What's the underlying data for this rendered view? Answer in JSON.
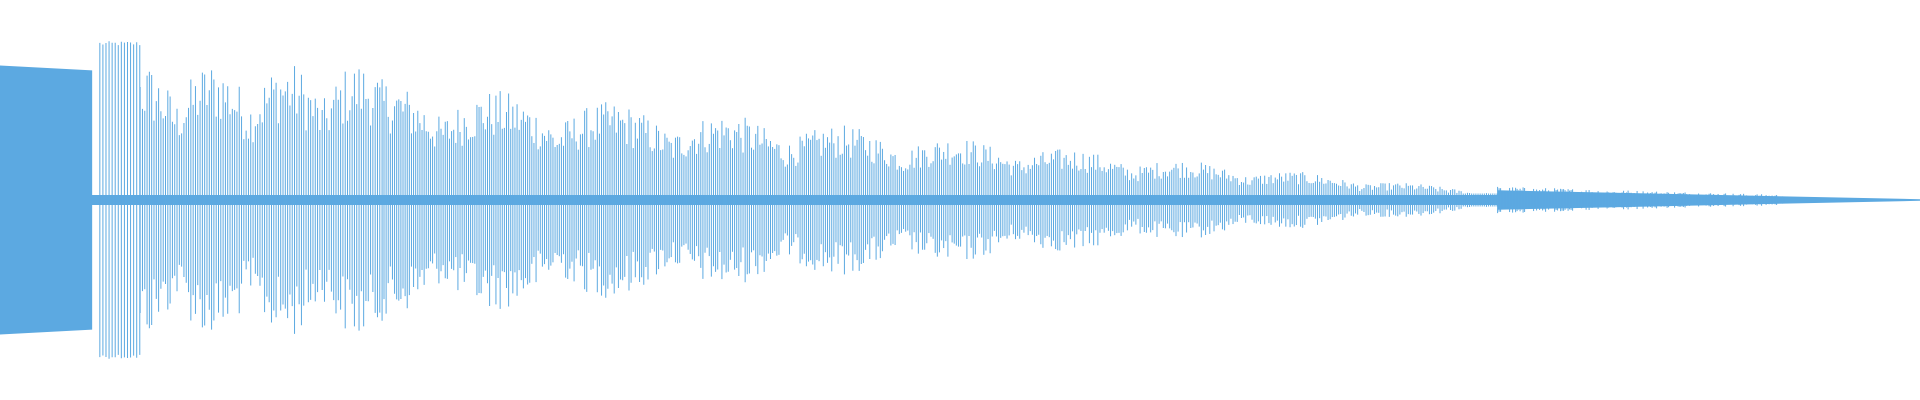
{
  "waveform": {
    "color": "#5ca9e1",
    "background": "#ffffff",
    "segments": [
      {
        "kind": "solid",
        "start": 0.0,
        "end": 0.048,
        "amp_start": 0.83,
        "amp_end": 0.8
      },
      {
        "kind": "gap",
        "start": 0.048,
        "end": 0.052
      },
      {
        "kind": "bars",
        "start": 0.052,
        "end": 0.073,
        "amp": 0.98,
        "density": 0.0016
      },
      {
        "kind": "osc",
        "start": 0.073,
        "end": 0.2,
        "amp": 0.86,
        "beat_period": 0.038,
        "density": 0.0012
      },
      {
        "kind": "osc",
        "start": 0.2,
        "end": 0.78,
        "amp_start": 0.75,
        "amp_end": 0.05,
        "beat_period": 0.06,
        "density": 0.0011
      },
      {
        "kind": "taper",
        "start": 0.78,
        "end": 1.0,
        "amp_start": 0.06,
        "amp_end": 0.005
      }
    ]
  }
}
